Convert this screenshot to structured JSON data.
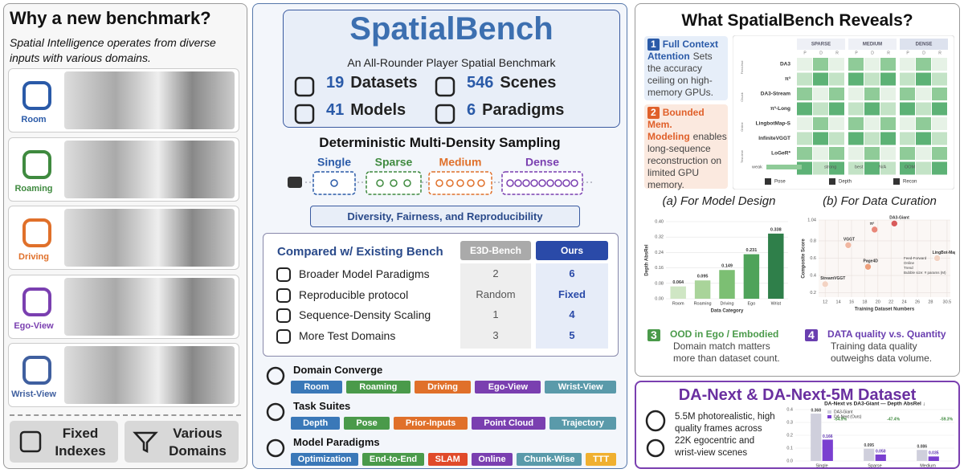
{
  "left": {
    "title": "Why a new benchmark?",
    "subtitle": "Spatial Intelligence operates from diverse inputs with various domains.",
    "domains": [
      "Room",
      "Roaming",
      "Driving",
      "Ego-View",
      "Wrist-View"
    ],
    "buttons": [
      "Fixed Indexes",
      "Various Domains"
    ]
  },
  "center": {
    "logo": "SpatialBench",
    "tagline": "An All-Rounder Player Spatial Benchmark",
    "stats": [
      {
        "value": 19,
        "label": "Datasets"
      },
      {
        "value": 546,
        "label": "Scenes"
      },
      {
        "value": 41,
        "label": "Models"
      },
      {
        "value": 6,
        "label": "Paradigms"
      }
    ],
    "sampling": {
      "title": "Deterministic Multi-Density Sampling",
      "levels": [
        "Single",
        "Sparse",
        "Medium",
        "Dense"
      ],
      "banner": "Diversity, Fairness, and Reproducibility"
    },
    "comparison": {
      "header": [
        "Compared w/ Existing Bench",
        "E3D-Bench",
        "Ours"
      ],
      "rows": [
        [
          "Broader Model Paradigms",
          2,
          6
        ],
        [
          "Reproducible protocol",
          "Random",
          "Fixed"
        ],
        [
          "Sequence-Density Scaling",
          1,
          4
        ],
        [
          "More Test Domains",
          3,
          5
        ]
      ]
    },
    "domain_converge": {
      "title": "Domain Converge",
      "tags": [
        "Room",
        "Roaming",
        "Driving",
        "Ego-View",
        "Wrist-View"
      ]
    },
    "task_suites": {
      "title": "Task Suites",
      "tags": [
        "Depth",
        "Pose",
        "Prior-Inputs",
        "Point Cloud",
        "Trajectory"
      ]
    },
    "model_paradigms": {
      "title": "Model Paradigms",
      "tags": [
        "Optimization",
        "End-to-End",
        "SLAM",
        "Online",
        "Chunk-Wise",
        "TTT"
      ]
    }
  },
  "right": {
    "title": "What SpatialBench Reveals?",
    "findings": [
      {
        "number": "1",
        "heading": "Full Context Attention",
        "body": "Sets the accuracy ceiling on high-memory GPUs."
      },
      {
        "number": "2",
        "heading": "Bounded Mem. Modeling",
        "body": "enables long-sequence reconstruction on limited GPU memory."
      },
      {
        "number": "3",
        "heading": "OOD in Ego / Embodied",
        "body": "Domain match matters more than dataset count."
      },
      {
        "number": "4",
        "heading": "DATA quality v.s. Quantity",
        "body": "Training data quality outweighs data volume."
      }
    ],
    "heatmap": {
      "columns": [
        "SPARSE",
        "MEDIUM",
        "DENSE"
      ],
      "subcolumns": [
        "P",
        "D",
        "R"
      ],
      "rows": [
        "DA3",
        "π³",
        "DA3-Stream",
        "π³-Long",
        "LingbotMap-S",
        "InfiniteVGGT",
        "LoGeR*",
        "Scal3R"
      ],
      "groups": [
        "Feed-fwd",
        "Chunk",
        "Online",
        "Test-time"
      ],
      "legend": [
        "weak",
        "strong",
        "best",
        "N/A",
        "OOM"
      ],
      "tasks": [
        "Pose",
        "Depth",
        "Recon"
      ]
    },
    "captions": [
      "(a) For Model Design",
      "(b) For Data Curation"
    ],
    "dataset": {
      "title": "DA-Next & DA-Next-5M Dataset",
      "body": "5.5M photorealistic, high quality frames across 22K egocentric and wrist-view scenes"
    }
  },
  "chart_data": [
    {
      "type": "bar",
      "ylabel": "Depth AbsRel",
      "xlabel": "Data Category",
      "categories": [
        "Room",
        "Roaming",
        "Driving",
        "Ego",
        "Wrist"
      ],
      "values": [
        0.064,
        0.095,
        0.149,
        0.231,
        0.338
      ],
      "colors": [
        "#cfe6c4",
        "#a9d49a",
        "#7cbf73",
        "#4fa35a",
        "#2f7f4a"
      ],
      "ylim": [
        0,
        0.4
      ],
      "yticks": [
        {
          "value": 0,
          "label": "0.00"
        },
        {
          "value": 0.08,
          "label": "0.08"
        },
        {
          "value": 0.16,
          "label": "0.16"
        },
        {
          "value": 0.24,
          "label": "0.24"
        },
        {
          "value": 0.32,
          "label": "0.32"
        },
        {
          "value": 0.4,
          "label": "0.40"
        }
      ],
      "grid": true
    },
    {
      "type": "scatter",
      "ylabel": "Composite Score",
      "xlabel": "Training Dataset Numbers",
      "x": [
        12,
        15.5,
        18.5,
        19.5,
        22.5,
        29
      ],
      "values": [
        0.3,
        0.75,
        0.5,
        0.93,
        1.0,
        0.6
      ],
      "labels": [
        "StreamVGGT",
        "VGGT",
        "Page4D",
        "π³",
        "DA3-Giant",
        "LingBot-Map"
      ],
      "colors": [
        "#f3d3c3",
        "#f1b7a1",
        "#eda07c",
        "#e8887a",
        "#d85b5b",
        "#f3d3c3"
      ],
      "legend": [
        "Feed-Forward",
        "Online",
        "Trend",
        "Bubble size: # params (M)"
      ],
      "xlim": [
        11,
        31
      ],
      "xticks": [
        12,
        14,
        16,
        18,
        20,
        22,
        24,
        26,
        28,
        30.5
      ],
      "ylim": [
        0.15,
        1.04
      ],
      "yticks": [
        0.2,
        0.4,
        0.6,
        0.8,
        1.04
      ],
      "grid": true
    },
    {
      "type": "grouped-bar",
      "title": "DA-Next vs DA3-Giant — Depth AbsRel ↓",
      "categories": [
        "Single",
        "Sparse",
        "Medium"
      ],
      "series": [
        {
          "name": "DA3-Giant",
          "color": "#cfcfdc",
          "values": [
            0.368,
            0.095,
            0.086
          ],
          "value_labels": [
            "0.368",
            "0.095",
            "0.086"
          ]
        },
        {
          "name": "DA-Next (Ours)",
          "color": "#7a3fd0",
          "values": [
            0.166,
            0.05,
            0.035
          ],
          "value_labels": [
            "0.166",
            "0.050",
            "0.035"
          ]
        }
      ],
      "annotations": [
        "-54.9%",
        "-47.4%",
        "-59.3%"
      ],
      "ylim": [
        0,
        0.4
      ],
      "yticks": [
        {
          "value": 0,
          "label": "0.0"
        },
        0.1,
        0.2,
        0.3,
        0.4
      ],
      "grid": true
    }
  ]
}
